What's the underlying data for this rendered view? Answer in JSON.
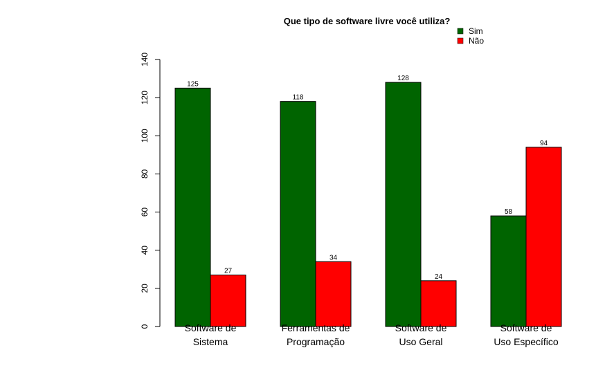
{
  "chart_data": {
    "type": "bar",
    "title": "Que tipo de software livre você utiliza?",
    "categories": [
      [
        "Software de",
        "Sistema"
      ],
      [
        "Ferramentas de",
        "Programação"
      ],
      [
        "Software de",
        "Uso Geral"
      ],
      [
        "Software de",
        "Uso Específico"
      ]
    ],
    "series": [
      {
        "name": "Sim",
        "values": [
          125,
          118,
          128,
          58
        ]
      },
      {
        "name": "Não",
        "values": [
          27,
          34,
          24,
          94
        ]
      }
    ],
    "ylim": [
      0,
      140
    ],
    "yticks": [
      0,
      20,
      40,
      60,
      80,
      100,
      120,
      140
    ],
    "xlabel": "",
    "ylabel": "",
    "grid": false,
    "legend": "top-right"
  },
  "colors": {
    "Sim": "#006400",
    "Não": "#ff0000"
  }
}
